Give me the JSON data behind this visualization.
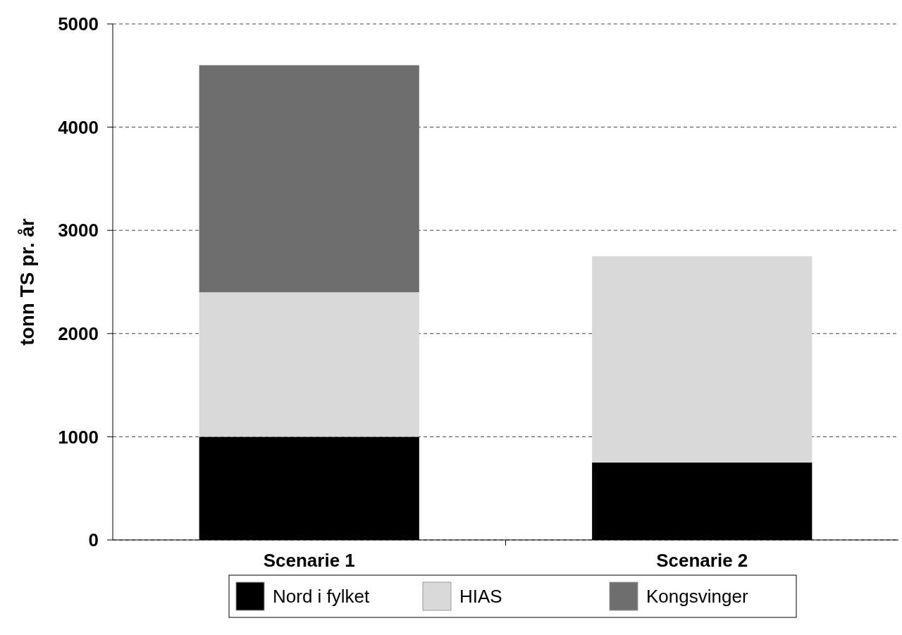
{
  "chart_data": {
    "type": "bar",
    "stacked": true,
    "ylabel": "tonn TS pr. år",
    "categories": [
      "Scenarie 1",
      "Scenarie 2"
    ],
    "series": [
      {
        "name": "Nord i fylket",
        "color": "#000000",
        "values": [
          1000,
          750
        ]
      },
      {
        "name": "HIAS",
        "color": "#d9d9d9",
        "values": [
          1400,
          2000
        ]
      },
      {
        "name": "Kongsvinger",
        "color": "#6e6e6e",
        "values": [
          2200,
          null
        ]
      }
    ],
    "ylim": [
      0,
      5000
    ],
    "yticks": [
      0,
      1000,
      2000,
      3000,
      4000,
      5000
    ],
    "grid": "y",
    "legend": "bottom"
  }
}
